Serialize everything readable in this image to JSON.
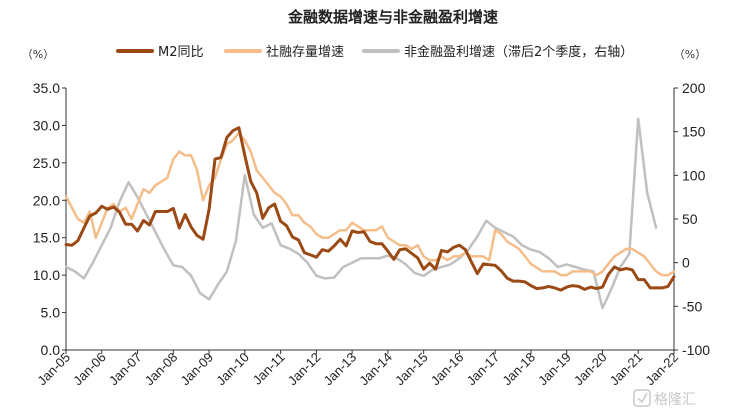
{
  "chart_data": {
    "type": "line",
    "title": "金融数据增速与非金融盈利增速",
    "left_unit": "（%）",
    "right_unit": "（%）",
    "legend_position": "top",
    "grid": false,
    "x_range": [
      "2005-01",
      "2022-01"
    ],
    "x_ticks": [
      "Jan-05",
      "Jan-06",
      "Jan-07",
      "Jan-08",
      "Jan-09",
      "Jan-10",
      "Jan-11",
      "Jan-12",
      "Jan-13",
      "Jan-14",
      "Jan-15",
      "Jan-16",
      "Jan-17",
      "Jan-18",
      "Jan-19",
      "Jan-20",
      "Jan-21",
      "Jan-22"
    ],
    "y_left": {
      "range": [
        0,
        35
      ],
      "ticks": [
        "0.0",
        "5.0",
        "10.0",
        "15.0",
        "20.0",
        "25.0",
        "30.0",
        "35.0"
      ]
    },
    "y_right": {
      "range": [
        -100,
        200
      ],
      "ticks": [
        "-100",
        "-50",
        "0",
        "50",
        "100",
        "150",
        "200"
      ]
    },
    "colors": {
      "m2": "#9b4a15",
      "tsf": "#f4bd8a",
      "profit": "#c0c0c0"
    },
    "series": [
      {
        "name": "M2同比",
        "axis": "left",
        "points": [
          [
            "2005-01",
            14.1
          ],
          [
            "2005-03",
            14.0
          ],
          [
            "2005-05",
            14.6
          ],
          [
            "2005-07",
            16.3
          ],
          [
            "2005-09",
            17.9
          ],
          [
            "2005-11",
            18.3
          ],
          [
            "2006-01",
            19.2
          ],
          [
            "2006-03",
            18.8
          ],
          [
            "2006-05",
            19.1
          ],
          [
            "2006-07",
            18.4
          ],
          [
            "2006-09",
            16.8
          ],
          [
            "2006-11",
            16.8
          ],
          [
            "2007-01",
            15.9
          ],
          [
            "2007-03",
            17.3
          ],
          [
            "2007-05",
            16.7
          ],
          [
            "2007-07",
            18.5
          ],
          [
            "2007-09",
            18.5
          ],
          [
            "2007-11",
            18.5
          ],
          [
            "2008-01",
            18.9
          ],
          [
            "2008-03",
            16.3
          ],
          [
            "2008-05",
            18.1
          ],
          [
            "2008-07",
            16.4
          ],
          [
            "2008-09",
            15.3
          ],
          [
            "2008-11",
            14.8
          ],
          [
            "2009-01",
            18.8
          ],
          [
            "2009-03",
            25.5
          ],
          [
            "2009-05",
            25.7
          ],
          [
            "2009-07",
            28.4
          ],
          [
            "2009-09",
            29.3
          ],
          [
            "2009-11",
            29.7
          ],
          [
            "2010-01",
            26.0
          ],
          [
            "2010-03",
            22.5
          ],
          [
            "2010-05",
            21.0
          ],
          [
            "2010-07",
            17.6
          ],
          [
            "2010-09",
            19.0
          ],
          [
            "2010-11",
            19.5
          ],
          [
            "2011-01",
            17.2
          ],
          [
            "2011-03",
            16.6
          ],
          [
            "2011-05",
            15.1
          ],
          [
            "2011-07",
            14.7
          ],
          [
            "2011-09",
            13.0
          ],
          [
            "2011-11",
            12.7
          ],
          [
            "2012-01",
            12.4
          ],
          [
            "2012-03",
            13.4
          ],
          [
            "2012-05",
            13.2
          ],
          [
            "2012-07",
            13.9
          ],
          [
            "2012-09",
            14.8
          ],
          [
            "2012-11",
            13.9
          ],
          [
            "2013-01",
            15.9
          ],
          [
            "2013-03",
            15.7
          ],
          [
            "2013-05",
            15.8
          ],
          [
            "2013-07",
            14.5
          ],
          [
            "2013-09",
            14.2
          ],
          [
            "2013-11",
            14.2
          ],
          [
            "2014-01",
            13.2
          ],
          [
            "2014-03",
            12.1
          ],
          [
            "2014-05",
            13.4
          ],
          [
            "2014-07",
            13.5
          ],
          [
            "2014-09",
            12.9
          ],
          [
            "2014-11",
            12.3
          ],
          [
            "2015-01",
            10.8
          ],
          [
            "2015-03",
            11.6
          ],
          [
            "2015-05",
            10.8
          ],
          [
            "2015-07",
            13.3
          ],
          [
            "2015-09",
            13.1
          ],
          [
            "2015-11",
            13.7
          ],
          [
            "2016-01",
            14.0
          ],
          [
            "2016-03",
            13.4
          ],
          [
            "2016-05",
            11.8
          ],
          [
            "2016-07",
            10.2
          ],
          [
            "2016-09",
            11.5
          ],
          [
            "2016-11",
            11.4
          ],
          [
            "2017-01",
            11.3
          ],
          [
            "2017-03",
            10.6
          ],
          [
            "2017-05",
            9.6
          ],
          [
            "2017-07",
            9.2
          ],
          [
            "2017-09",
            9.2
          ],
          [
            "2017-11",
            9.1
          ],
          [
            "2018-01",
            8.6
          ],
          [
            "2018-03",
            8.2
          ],
          [
            "2018-05",
            8.3
          ],
          [
            "2018-07",
            8.5
          ],
          [
            "2018-09",
            8.3
          ],
          [
            "2018-11",
            8.0
          ],
          [
            "2019-01",
            8.4
          ],
          [
            "2019-03",
            8.6
          ],
          [
            "2019-05",
            8.5
          ],
          [
            "2019-07",
            8.1
          ],
          [
            "2019-09",
            8.4
          ],
          [
            "2019-11",
            8.2
          ],
          [
            "2020-01",
            8.4
          ],
          [
            "2020-03",
            10.1
          ],
          [
            "2020-05",
            11.1
          ],
          [
            "2020-07",
            10.7
          ],
          [
            "2020-09",
            10.9
          ],
          [
            "2020-11",
            10.7
          ],
          [
            "2021-01",
            9.4
          ],
          [
            "2021-03",
            9.4
          ],
          [
            "2021-05",
            8.3
          ],
          [
            "2021-07",
            8.3
          ],
          [
            "2021-09",
            8.3
          ],
          [
            "2021-11",
            8.5
          ],
          [
            "2022-01",
            9.8
          ]
        ]
      },
      {
        "name": "社融存量增速",
        "axis": "left",
        "points": [
          [
            "2005-01",
            20.5
          ],
          [
            "2005-03",
            19.0
          ],
          [
            "2005-05",
            17.5
          ],
          [
            "2005-07",
            17.0
          ],
          [
            "2005-09",
            18.5
          ],
          [
            "2005-11",
            15.0
          ],
          [
            "2006-01",
            17.0
          ],
          [
            "2006-03",
            19.0
          ],
          [
            "2006-05",
            19.5
          ],
          [
            "2006-07",
            18.5
          ],
          [
            "2006-09",
            19.0
          ],
          [
            "2006-11",
            17.5
          ],
          [
            "2007-01",
            19.5
          ],
          [
            "2007-03",
            21.5
          ],
          [
            "2007-05",
            21.0
          ],
          [
            "2007-07",
            22.0
          ],
          [
            "2007-09",
            22.5
          ],
          [
            "2007-11",
            23.0
          ],
          [
            "2008-01",
            25.5
          ],
          [
            "2008-03",
            26.5
          ],
          [
            "2008-05",
            26.0
          ],
          [
            "2008-07",
            26.0
          ],
          [
            "2008-09",
            24.0
          ],
          [
            "2008-11",
            20.0
          ],
          [
            "2009-01",
            22.0
          ],
          [
            "2009-03",
            23.0
          ],
          [
            "2009-05",
            25.5
          ],
          [
            "2009-07",
            27.5
          ],
          [
            "2009-09",
            28.0
          ],
          [
            "2009-11",
            29.0
          ],
          [
            "2010-01",
            28.0
          ],
          [
            "2010-03",
            26.5
          ],
          [
            "2010-05",
            24.0
          ],
          [
            "2010-07",
            23.0
          ],
          [
            "2010-09",
            22.0
          ],
          [
            "2010-11",
            21.0
          ],
          [
            "2011-01",
            20.5
          ],
          [
            "2011-03",
            19.5
          ],
          [
            "2011-05",
            18.0
          ],
          [
            "2011-07",
            18.0
          ],
          [
            "2011-09",
            17.0
          ],
          [
            "2011-11",
            16.5
          ],
          [
            "2012-01",
            15.5
          ],
          [
            "2012-03",
            15.0
          ],
          [
            "2012-05",
            15.0
          ],
          [
            "2012-07",
            15.5
          ],
          [
            "2012-09",
            16.0
          ],
          [
            "2012-11",
            16.0
          ],
          [
            "2013-01",
            17.0
          ],
          [
            "2013-03",
            16.5
          ],
          [
            "2013-05",
            16.0
          ],
          [
            "2013-07",
            16.0
          ],
          [
            "2013-09",
            16.0
          ],
          [
            "2013-11",
            16.5
          ],
          [
            "2014-01",
            15.0
          ],
          [
            "2014-03",
            14.5
          ],
          [
            "2014-05",
            14.0
          ],
          [
            "2014-07",
            14.0
          ],
          [
            "2014-09",
            13.5
          ],
          [
            "2014-11",
            14.0
          ],
          [
            "2015-01",
            12.5
          ],
          [
            "2015-03",
            12.0
          ],
          [
            "2015-05",
            12.0
          ],
          [
            "2015-07",
            12.5
          ],
          [
            "2015-09",
            12.0
          ],
          [
            "2015-11",
            12.5
          ],
          [
            "2016-01",
            12.5
          ],
          [
            "2016-03",
            13.0
          ],
          [
            "2016-05",
            12.5
          ],
          [
            "2016-07",
            12.5
          ],
          [
            "2016-09",
            12.5
          ],
          [
            "2016-11",
            12.0
          ],
          [
            "2017-01",
            16.0
          ],
          [
            "2017-03",
            15.5
          ],
          [
            "2017-05",
            14.5
          ],
          [
            "2017-07",
            14.0
          ],
          [
            "2017-09",
            13.5
          ],
          [
            "2017-11",
            12.5
          ],
          [
            "2018-01",
            11.5
          ],
          [
            "2018-03",
            11.0
          ],
          [
            "2018-05",
            10.5
          ],
          [
            "2018-07",
            10.5
          ],
          [
            "2018-09",
            10.5
          ],
          [
            "2018-11",
            10.0
          ],
          [
            "2019-01",
            10.0
          ],
          [
            "2019-03",
            10.5
          ],
          [
            "2019-05",
            10.5
          ],
          [
            "2019-07",
            10.5
          ],
          [
            "2019-09",
            10.5
          ],
          [
            "2019-11",
            10.0
          ],
          [
            "2020-01",
            10.5
          ],
          [
            "2020-03",
            11.5
          ],
          [
            "2020-05",
            12.5
          ],
          [
            "2020-07",
            13.0
          ],
          [
            "2020-09",
            13.5
          ],
          [
            "2020-11",
            13.5
          ],
          [
            "2021-01",
            13.0
          ],
          [
            "2021-03",
            12.5
          ],
          [
            "2021-05",
            11.5
          ],
          [
            "2021-07",
            10.5
          ],
          [
            "2021-09",
            10.0
          ],
          [
            "2021-11",
            10.0
          ],
          [
            "2022-01",
            10.5
          ]
        ]
      },
      {
        "name": "非金融盈利增速（滞后2个季度，右轴）",
        "axis": "right",
        "points": [
          [
            "2005-01",
            -5
          ],
          [
            "2005-04",
            -10
          ],
          [
            "2005-07",
            -18
          ],
          [
            "2005-10",
            0
          ],
          [
            "2006-01",
            20
          ],
          [
            "2006-04",
            40
          ],
          [
            "2006-07",
            70
          ],
          [
            "2006-10",
            92
          ],
          [
            "2007-01",
            75
          ],
          [
            "2007-04",
            55
          ],
          [
            "2007-07",
            35
          ],
          [
            "2007-10",
            15
          ],
          [
            "2008-01",
            -3
          ],
          [
            "2008-04",
            -5
          ],
          [
            "2008-07",
            -15
          ],
          [
            "2008-10",
            -35
          ],
          [
            "2009-01",
            -42
          ],
          [
            "2009-04",
            -25
          ],
          [
            "2009-07",
            -10
          ],
          [
            "2009-10",
            25
          ],
          [
            "2010-01",
            100
          ],
          [
            "2010-04",
            55
          ],
          [
            "2010-07",
            40
          ],
          [
            "2010-10",
            45
          ],
          [
            "2011-01",
            20
          ],
          [
            "2011-04",
            16
          ],
          [
            "2011-07",
            10
          ],
          [
            "2011-10",
            0
          ],
          [
            "2012-01",
            -15
          ],
          [
            "2012-04",
            -18
          ],
          [
            "2012-07",
            -17
          ],
          [
            "2012-10",
            -5
          ],
          [
            "2013-01",
            0
          ],
          [
            "2013-04",
            5
          ],
          [
            "2013-07",
            5
          ],
          [
            "2013-10",
            5
          ],
          [
            "2014-01",
            8
          ],
          [
            "2014-04",
            5
          ],
          [
            "2014-07",
            -2
          ],
          [
            "2014-10",
            -12
          ],
          [
            "2015-01",
            -15
          ],
          [
            "2015-04",
            -8
          ],
          [
            "2015-07",
            -5
          ],
          [
            "2015-10",
            -2
          ],
          [
            "2016-01",
            5
          ],
          [
            "2016-04",
            15
          ],
          [
            "2016-07",
            30
          ],
          [
            "2016-10",
            48
          ],
          [
            "2017-01",
            40
          ],
          [
            "2017-04",
            35
          ],
          [
            "2017-07",
            30
          ],
          [
            "2017-10",
            20
          ],
          [
            "2018-01",
            15
          ],
          [
            "2018-04",
            12
          ],
          [
            "2018-07",
            5
          ],
          [
            "2018-10",
            -5
          ],
          [
            "2019-01",
            -2
          ],
          [
            "2019-04",
            -5
          ],
          [
            "2019-07",
            -8
          ],
          [
            "2019-10",
            -10
          ],
          [
            "2020-01",
            -52
          ],
          [
            "2020-04",
            -30
          ],
          [
            "2020-07",
            -5
          ],
          [
            "2020-10",
            10
          ],
          [
            "2021-01",
            165
          ],
          [
            "2021-04",
            80
          ],
          [
            "2021-07",
            40
          ]
        ]
      }
    ]
  },
  "watermark": {
    "text": "格隆汇"
  }
}
